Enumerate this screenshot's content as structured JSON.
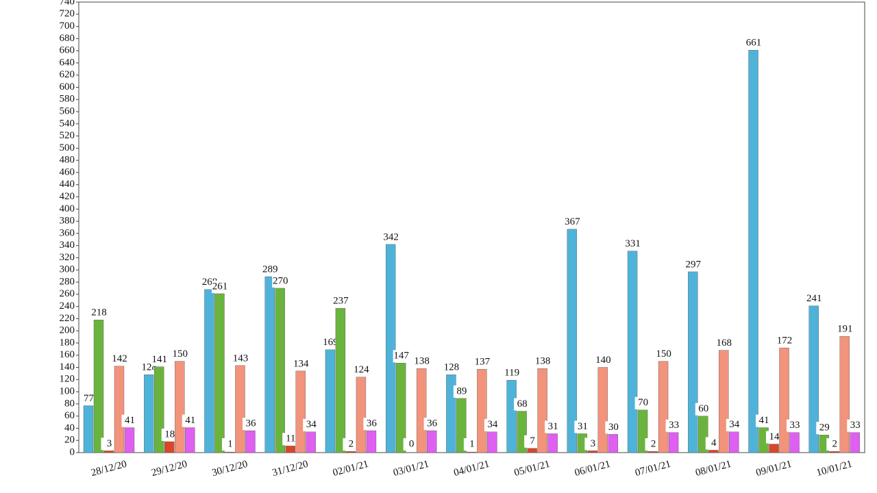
{
  "chart_data": {
    "type": "bar",
    "categories": [
      "28/12/20",
      "29/12/20",
      "30/12/20",
      "31/12/20",
      "02/01/21",
      "03/01/21",
      "04/01/21",
      "05/01/21",
      "06/01/21",
      "07/01/21",
      "08/01/21",
      "09/01/21",
      "10/01/21"
    ],
    "series": [
      {
        "color": "#4fb3d9",
        "values": [
          77,
          128,
          268,
          289,
          169,
          342,
          128,
          119,
          367,
          331,
          297,
          661,
          241
        ]
      },
      {
        "color": "#6ab43e",
        "values": [
          218,
          141,
          261,
          270,
          237,
          147,
          89,
          68,
          31,
          70,
          60,
          41,
          29
        ]
      },
      {
        "color": "#d9472b",
        "values": [
          3,
          18,
          1,
          11,
          2,
          0,
          1,
          7,
          3,
          2,
          4,
          14,
          2
        ]
      },
      {
        "color": "#f2937b",
        "values": [
          142,
          150,
          143,
          134,
          124,
          138,
          137,
          138,
          140,
          150,
          168,
          172,
          191
        ]
      },
      {
        "color": "#df5ff0",
        "values": [
          41,
          41,
          36,
          34,
          36,
          36,
          34,
          31,
          30,
          33,
          34,
          33,
          33
        ]
      }
    ],
    "ylim": [
      0,
      740
    ],
    "yticks": [
      0,
      20,
      40,
      60,
      80,
      100,
      120,
      140,
      160,
      180,
      200,
      220,
      240,
      260,
      280,
      300,
      320,
      340,
      360,
      380,
      400,
      420,
      440,
      460,
      480,
      500,
      520,
      540,
      560,
      580,
      600,
      620,
      640,
      660,
      680,
      700,
      720,
      740
    ]
  }
}
